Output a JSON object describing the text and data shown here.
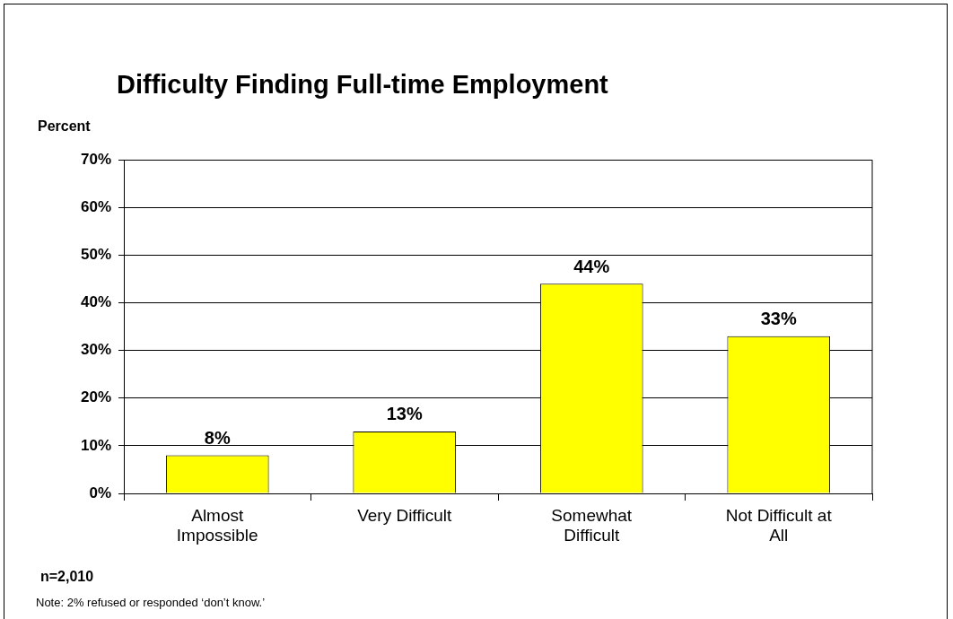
{
  "chart_data": {
    "type": "bar",
    "title": "Difficulty Finding Full-time Employment",
    "ylabel": "Percent",
    "categories": [
      "Almost Impossible",
      "Very Difficult",
      "Somewhat Difficult",
      "Not Difficult at All"
    ],
    "values": [
      8,
      13,
      44,
      33
    ],
    "value_labels": [
      "8%",
      "13%",
      "44%",
      "33%"
    ],
    "color": "#ffff00",
    "ylim": [
      0,
      70
    ],
    "yticks": [
      {
        "value": 0,
        "label": "0%"
      },
      {
        "value": 10,
        "label": "10%"
      },
      {
        "value": 20,
        "label": "20%"
      },
      {
        "value": 30,
        "label": "30%"
      },
      {
        "value": 40,
        "label": "40%"
      },
      {
        "value": 50,
        "label": "50%"
      },
      {
        "value": 60,
        "label": "60%"
      },
      {
        "value": 70,
        "label": "70%"
      }
    ],
    "grid": "y",
    "annotations": [
      "n=2,010",
      "Note: 2% refused or responded ‘don’t know.’"
    ]
  }
}
